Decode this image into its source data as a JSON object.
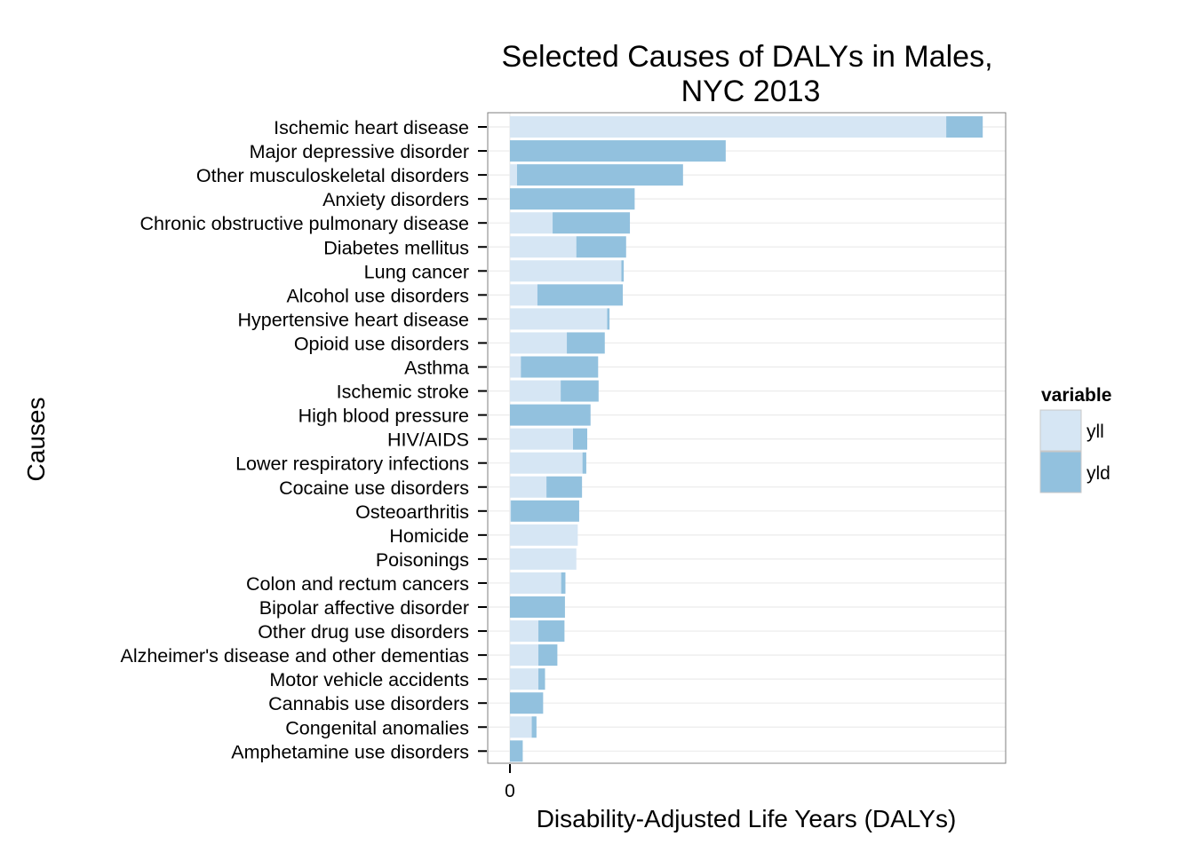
{
  "chart_data": {
    "type": "bar",
    "orientation": "horizontal",
    "stacked": true,
    "title_lines": [
      "Selected Causes of DALYs in Males,",
      "NYC 2013"
    ],
    "xlabel": "Disability-Adjusted Life Years (DALYs)",
    "ylabel": "Causes",
    "x_ticks": [
      "0"
    ],
    "xlim": [
      0,
      1045
    ],
    "grid": true,
    "legend": {
      "title": "variable",
      "position": "right"
    },
    "categories": [
      "Ischemic heart disease",
      "Major depressive disorder",
      "Other musculoskeletal disorders",
      "Anxiety disorders",
      "Chronic obstructive pulmonary disease",
      "Diabetes mellitus",
      "Lung cancer",
      "Alcohol use disorders",
      "Hypertensive heart disease",
      "Opioid use disorders",
      "Asthma",
      "Ischemic stroke",
      "High blood pressure",
      "HIV/AIDS",
      "Lower respiratory infections",
      "Cocaine use disorders",
      "Osteoarthritis",
      "Homicide",
      "Poisonings",
      "Colon and rectum cancers",
      "Bipolar affective disorder",
      "Other drug use disorders",
      "Alzheimer's disease and other dementias",
      "Motor vehicle accidents",
      "Cannabis use disorders",
      "Congenital anomalies",
      "Amphetamine use disorders"
    ],
    "series": [
      {
        "name": "yll",
        "color": "#d6e6f4",
        "values": [
          920,
          0,
          15,
          0,
          90,
          140,
          235,
          58,
          205,
          120,
          23,
          107,
          0,
          133,
          153,
          77,
          2,
          143,
          140,
          108,
          0,
          60,
          60,
          60,
          0,
          46,
          0
        ]
      },
      {
        "name": "yld",
        "color": "#92c1de",
        "values": [
          77,
          455,
          350,
          263,
          163,
          105,
          5,
          180,
          5,
          80,
          163,
          80,
          170,
          30,
          8,
          75,
          144,
          0,
          0,
          9,
          116,
          55,
          40,
          14,
          70,
          10,
          27
        ]
      }
    ]
  }
}
